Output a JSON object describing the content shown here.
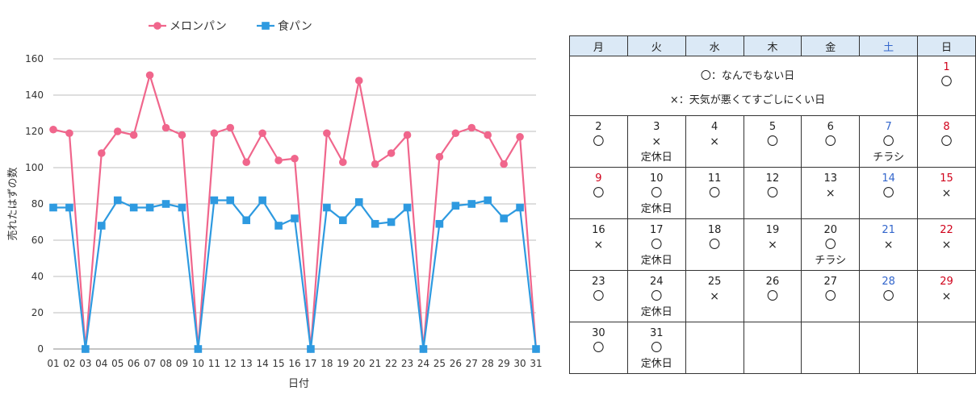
{
  "chart_data": {
    "type": "line",
    "categories": [
      "01",
      "02",
      "03",
      "04",
      "05",
      "06",
      "07",
      "08",
      "09",
      "10",
      "11",
      "12",
      "13",
      "14",
      "15",
      "16",
      "17",
      "18",
      "19",
      "20",
      "21",
      "22",
      "23",
      "24",
      "25",
      "26",
      "27",
      "28",
      "29",
      "30",
      "31"
    ],
    "series": [
      {
        "name": "メロンパン",
        "color": "#f0668c",
        "marker": "circle",
        "values": [
          121,
          119,
          0,
          108,
          120,
          118,
          151,
          122,
          118,
          0,
          119,
          122,
          103,
          119,
          104,
          105,
          0,
          119,
          103,
          148,
          102,
          108,
          118,
          0,
          106,
          119,
          122,
          118,
          102,
          117,
          0
        ]
      },
      {
        "name": "食パン",
        "color": "#2e9ae0",
        "marker": "square",
        "values": [
          78,
          78,
          0,
          68,
          82,
          78,
          78,
          80,
          78,
          0,
          82,
          82,
          71,
          82,
          68,
          72,
          0,
          78,
          71,
          81,
          69,
          70,
          78,
          0,
          69,
          79,
          80,
          82,
          72,
          78,
          0
        ]
      }
    ],
    "xlabel": "日付",
    "ylabel": "売れたはずの数",
    "ylim": [
      0,
      160
    ],
    "yticks": [
      0,
      20,
      40,
      60,
      80,
      100,
      120,
      140,
      160
    ],
    "grid": true,
    "legend_position": "top"
  },
  "calendar": {
    "headers": [
      {
        "label": "月",
        "color": "#222222"
      },
      {
        "label": "火",
        "color": "#222222"
      },
      {
        "label": "水",
        "color": "#222222"
      },
      {
        "label": "木",
        "color": "#222222"
      },
      {
        "label": "金",
        "color": "#222222"
      },
      {
        "label": "土",
        "color": "#3366cc"
      },
      {
        "label": "日",
        "color": "#222222"
      }
    ],
    "legend": [
      "〇：なんでもない日",
      "×：天気が悪くてすごしにくい日"
    ],
    "colors": {
      "weekday": "#222222",
      "saturday": "#3366cc",
      "holiday": "#d0021b"
    },
    "weeks": [
      [
        null,
        null,
        null,
        null,
        null,
        null,
        {
          "day": "1",
          "mark": "〇",
          "note": "",
          "type": "holiday"
        }
      ],
      [
        {
          "day": "2",
          "mark": "〇",
          "note": "",
          "type": "weekday"
        },
        {
          "day": "3",
          "mark": "×",
          "note": "定休日",
          "type": "weekday"
        },
        {
          "day": "4",
          "mark": "×",
          "note": "",
          "type": "weekday"
        },
        {
          "day": "5",
          "mark": "〇",
          "note": "",
          "type": "weekday"
        },
        {
          "day": "6",
          "mark": "〇",
          "note": "",
          "type": "weekday"
        },
        {
          "day": "7",
          "mark": "〇",
          "note": "チラシ",
          "type": "saturday"
        },
        {
          "day": "8",
          "mark": "〇",
          "note": "",
          "type": "holiday"
        }
      ],
      [
        {
          "day": "9",
          "mark": "〇",
          "note": "",
          "type": "holiday"
        },
        {
          "day": "10",
          "mark": "〇",
          "note": "定休日",
          "type": "weekday"
        },
        {
          "day": "11",
          "mark": "〇",
          "note": "",
          "type": "weekday"
        },
        {
          "day": "12",
          "mark": "〇",
          "note": "",
          "type": "weekday"
        },
        {
          "day": "13",
          "mark": "×",
          "note": "",
          "type": "weekday"
        },
        {
          "day": "14",
          "mark": "〇",
          "note": "",
          "type": "saturday"
        },
        {
          "day": "15",
          "mark": "×",
          "note": "",
          "type": "holiday"
        }
      ],
      [
        {
          "day": "16",
          "mark": "×",
          "note": "",
          "type": "weekday"
        },
        {
          "day": "17",
          "mark": "〇",
          "note": "定休日",
          "type": "weekday"
        },
        {
          "day": "18",
          "mark": "〇",
          "note": "",
          "type": "weekday"
        },
        {
          "day": "19",
          "mark": "×",
          "note": "",
          "type": "weekday"
        },
        {
          "day": "20",
          "mark": "〇",
          "note": "チラシ",
          "type": "weekday"
        },
        {
          "day": "21",
          "mark": "×",
          "note": "",
          "type": "saturday"
        },
        {
          "day": "22",
          "mark": "×",
          "note": "",
          "type": "holiday"
        }
      ],
      [
        {
          "day": "23",
          "mark": "〇",
          "note": "",
          "type": "weekday"
        },
        {
          "day": "24",
          "mark": "〇",
          "note": "定休日",
          "type": "weekday"
        },
        {
          "day": "25",
          "mark": "×",
          "note": "",
          "type": "weekday"
        },
        {
          "day": "26",
          "mark": "〇",
          "note": "",
          "type": "weekday"
        },
        {
          "day": "27",
          "mark": "〇",
          "note": "",
          "type": "weekday"
        },
        {
          "day": "28",
          "mark": "〇",
          "note": "",
          "type": "saturday"
        },
        {
          "day": "29",
          "mark": "×",
          "note": "",
          "type": "holiday"
        }
      ],
      [
        {
          "day": "30",
          "mark": "〇",
          "note": "",
          "type": "weekday"
        },
        {
          "day": "31",
          "mark": "〇",
          "note": "定休日",
          "type": "weekday"
        },
        null,
        null,
        null,
        null,
        null
      ]
    ]
  }
}
